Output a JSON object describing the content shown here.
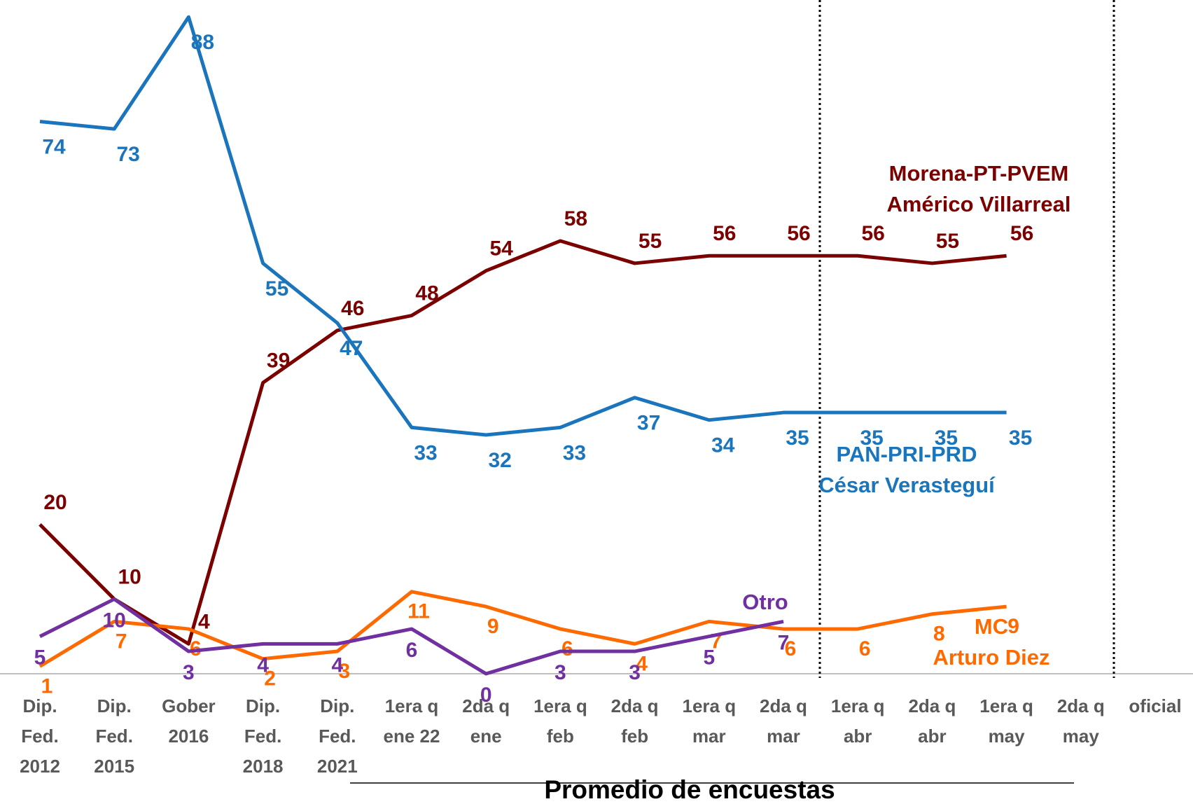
{
  "chart_data": {
    "type": "line",
    "x_label": "Promedio de encuestas",
    "categories": [
      "Dip.\nFed.\n2012",
      "Dip.\nFed.\n2015",
      "Gober\n2016",
      "Dip.\nFed.\n2018",
      "Dip.\nFed.\n2021",
      "1era q\nene 22",
      "2da q\nene",
      "1era q\nfeb",
      "2da q\nfeb",
      "1era q\nmar",
      "2da q\nmar",
      "1era q\nabr",
      "2da q\nabr",
      "1era q\nmay",
      "2da q\nmay",
      "oficial"
    ],
    "ylim": [
      0,
      90
    ],
    "series": [
      {
        "name": "Morena-PT-PVEM\nAmérico Villarreal",
        "color": "#7b0000",
        "values": [
          20,
          10,
          4,
          39,
          46,
          48,
          54,
          58,
          55,
          56,
          56,
          56,
          55,
          56,
          null,
          null
        ]
      },
      {
        "name": "PAN-PRI-PRD\nCésar Verasteguí",
        "color": "#1a75bc",
        "values": [
          74,
          73,
          88,
          55,
          47,
          33,
          32,
          33,
          37,
          34,
          35,
          35,
          35,
          35,
          null,
          null
        ]
      },
      {
        "name": "MC\nArturo Diez",
        "color": "#ff6a00",
        "values": [
          1,
          7,
          6,
          2,
          3,
          11,
          9,
          6,
          4,
          7,
          6,
          6,
          8,
          9,
          null,
          null
        ]
      },
      {
        "name": "Otro",
        "color": "#7030a0",
        "values": [
          5,
          10,
          3,
          4,
          4,
          6,
          0,
          3,
          3,
          5,
          7,
          null,
          null,
          null,
          null,
          null
        ]
      }
    ]
  }
}
